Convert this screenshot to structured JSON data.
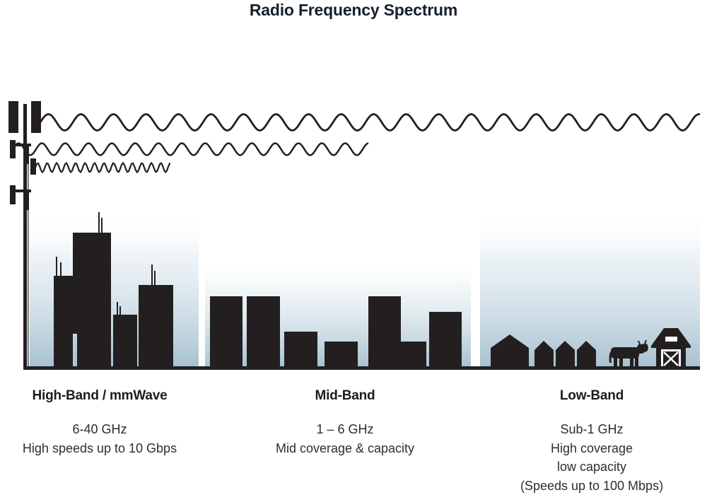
{
  "title": "Radio Frequency Spectrum",
  "bands": [
    {
      "name": "High-Band / mmWave",
      "details": [
        "6-40 GHz",
        "High speeds up to 10 Gbps"
      ]
    },
    {
      "name": "Mid-Band",
      "details": [
        "1 – 6 GHz",
        "Mid coverage & capacity"
      ]
    },
    {
      "name": "Low-Band",
      "details": [
        "Sub-1 GHz",
        "High coverage",
        "low capacity",
        "(Speeds up to 100 Mbps)"
      ]
    }
  ],
  "icons": {
    "tower": "cell-tower-icon",
    "low_band_wave": "long-wavelength-wave-icon",
    "mid_band_wave": "medium-wavelength-wave-icon",
    "high_band_wave": "short-wavelength-wave-icon",
    "high_band_scene": "city-skyline-icon",
    "mid_band_scene": "mid-rise-buildings-icon",
    "low_band_scene": "rural-houses-barn-cow-icon"
  },
  "colors": {
    "ink": "#231f20",
    "title_ink": "#16202b",
    "text_ink": "#2e2e2e",
    "panel_blue": "#a7c0d0"
  }
}
